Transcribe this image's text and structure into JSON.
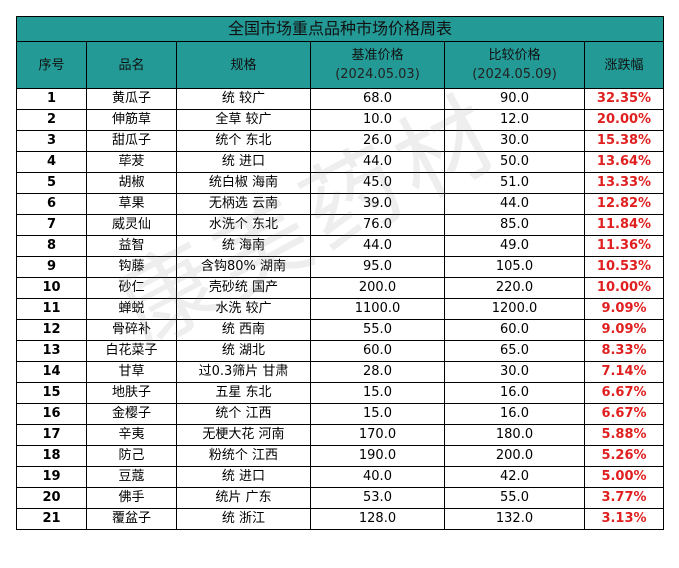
{
  "table": {
    "title": "全国市场重点品种市场价格周表",
    "headers": {
      "seq": "序号",
      "name": "品名",
      "spec": "规格",
      "base_price": "基准价格",
      "base_date": "(2024.05.03)",
      "compare_price": "比较价格",
      "compare_date": "(2024.05.09)",
      "change": "涨跌幅"
    },
    "rows": [
      {
        "seq": "1",
        "name": "黄瓜子",
        "spec": "统 较广",
        "base": "68.0",
        "compare": "90.0",
        "change": "32.35%"
      },
      {
        "seq": "2",
        "name": "伸筋草",
        "spec": "全草 较广",
        "base": "10.0",
        "compare": "12.0",
        "change": "20.00%"
      },
      {
        "seq": "3",
        "name": "甜瓜子",
        "spec": "统个 东北",
        "base": "26.0",
        "compare": "30.0",
        "change": "15.38%"
      },
      {
        "seq": "4",
        "name": "荜茇",
        "spec": "统 进口",
        "base": "44.0",
        "compare": "50.0",
        "change": "13.64%"
      },
      {
        "seq": "5",
        "name": "胡椒",
        "spec": "统白椒 海南",
        "base": "45.0",
        "compare": "51.0",
        "change": "13.33%"
      },
      {
        "seq": "6",
        "name": "草果",
        "spec": "无柄选 云南",
        "base": "39.0",
        "compare": "44.0",
        "change": "12.82%"
      },
      {
        "seq": "7",
        "name": "威灵仙",
        "spec": "水洗个 东北",
        "base": "76.0",
        "compare": "85.0",
        "change": "11.84%"
      },
      {
        "seq": "8",
        "name": "益智",
        "spec": "统 海南",
        "base": "44.0",
        "compare": "49.0",
        "change": "11.36%"
      },
      {
        "seq": "9",
        "name": "钩藤",
        "spec": "含钩80% 湖南",
        "base": "95.0",
        "compare": "105.0",
        "change": "10.53%"
      },
      {
        "seq": "10",
        "name": "砂仁",
        "spec": "壳砂统 国产",
        "base": "200.0",
        "compare": "220.0",
        "change": "10.00%"
      },
      {
        "seq": "11",
        "name": "蝉蜕",
        "spec": "水洗 较广",
        "base": "1100.0",
        "compare": "1200.0",
        "change": "9.09%"
      },
      {
        "seq": "12",
        "name": "骨碎补",
        "spec": "统 西南",
        "base": "55.0",
        "compare": "60.0",
        "change": "9.09%"
      },
      {
        "seq": "13",
        "name": "白花菜子",
        "spec": "统 湖北",
        "base": "60.0",
        "compare": "65.0",
        "change": "8.33%"
      },
      {
        "seq": "14",
        "name": "甘草",
        "spec": "过0.3筛片 甘肃",
        "base": "28.0",
        "compare": "30.0",
        "change": "7.14%"
      },
      {
        "seq": "15",
        "name": "地肤子",
        "spec": "五星 东北",
        "base": "15.0",
        "compare": "16.0",
        "change": "6.67%"
      },
      {
        "seq": "16",
        "name": "金樱子",
        "spec": "统个 江西",
        "base": "15.0",
        "compare": "16.0",
        "change": "6.67%"
      },
      {
        "seq": "17",
        "name": "辛夷",
        "spec": "无梗大花 河南",
        "base": "170.0",
        "compare": "180.0",
        "change": "5.88%"
      },
      {
        "seq": "18",
        "name": "防己",
        "spec": "粉统个 江西",
        "base": "190.0",
        "compare": "200.0",
        "change": "5.26%"
      },
      {
        "seq": "19",
        "name": "豆蔻",
        "spec": "统 进口",
        "base": "40.0",
        "compare": "42.0",
        "change": "5.00%"
      },
      {
        "seq": "20",
        "name": "佛手",
        "spec": "统片 广东",
        "base": "53.0",
        "compare": "55.0",
        "change": "3.77%"
      },
      {
        "seq": "21",
        "name": "覆盆子",
        "spec": "统 浙江",
        "base": "128.0",
        "compare": "132.0",
        "change": "3.13%"
      }
    ]
  },
  "watermark": "康美药材",
  "colors": {
    "header_bg": "#239a96",
    "change_text": "#e02020"
  }
}
